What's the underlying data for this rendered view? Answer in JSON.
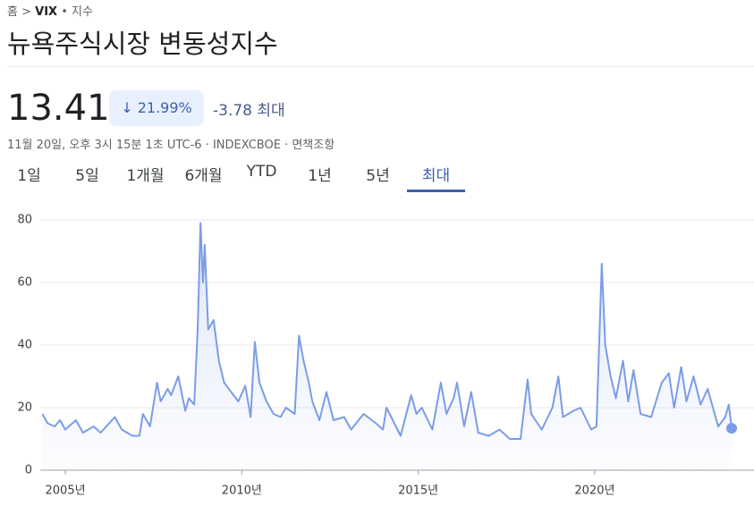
{
  "header": {
    "breadcrumb": [
      "홈",
      "VIX",
      "지수"
    ],
    "title": "뉴욕주식시장 변동성지수",
    "price": "13.41",
    "change_percent": "21.99%",
    "change": "-3.78",
    "period_label": "최대",
    "timestamp": "11월 20일, 오후 3시 15분 1초 UTC-6",
    "exchange": "INDEXCBOE",
    "disclaimer": "면책조항"
  },
  "tabs": [
    "1일",
    "5일",
    "1개월",
    "6개월",
    "YTD",
    "1년",
    "5년",
    "최대"
  ],
  "chart_data": {
    "type": "line",
    "x": [
      2004.35,
      2004.5,
      2004.7,
      2004.85,
      2005.0,
      2005.3,
      2005.5,
      2005.8,
      2006.0,
      2006.4,
      2006.6,
      2006.9,
      2007.1,
      2007.2,
      2007.4,
      2007.6,
      2007.7,
      2007.9,
      2008.0,
      2008.2,
      2008.4,
      2008.5,
      2008.65,
      2008.75,
      2008.83,
      2008.9,
      2008.95,
      2009.05,
      2009.2,
      2009.35,
      2009.5,
      2009.7,
      2009.9,
      2010.1,
      2010.25,
      2010.37,
      2010.5,
      2010.7,
      2010.9,
      2011.1,
      2011.25,
      2011.5,
      2011.62,
      2011.75,
      2011.9,
      2012.0,
      2012.2,
      2012.4,
      2012.6,
      2012.9,
      2013.1,
      2013.45,
      2013.8,
      2014.0,
      2014.1,
      2014.5,
      2014.8,
      2014.95,
      2015.1,
      2015.4,
      2015.64,
      2015.8,
      2016.0,
      2016.1,
      2016.3,
      2016.5,
      2016.7,
      2017.0,
      2017.3,
      2017.6,
      2017.9,
      2018.1,
      2018.2,
      2018.5,
      2018.8,
      2018.97,
      2019.1,
      2019.4,
      2019.6,
      2019.9,
      2020.05,
      2020.2,
      2020.3,
      2020.45,
      2020.6,
      2020.8,
      2020.95,
      2021.1,
      2021.3,
      2021.6,
      2021.9,
      2022.1,
      2022.25,
      2022.45,
      2022.6,
      2022.8,
      2023.0,
      2023.2,
      2023.5,
      2023.7,
      2023.8,
      2023.88
    ],
    "series": [
      {
        "name": "VIX",
        "color": "#7b9ce6",
        "values": [
          18,
          15,
          14,
          16,
          13,
          16,
          12,
          14,
          12,
          17,
          13,
          11,
          11,
          18,
          14,
          28,
          22,
          26,
          24,
          30,
          19,
          23,
          21,
          45,
          79,
          60,
          72,
          45,
          48,
          35,
          28,
          25,
          22,
          27,
          17,
          41,
          28,
          22,
          18,
          17,
          20,
          18,
          43,
          35,
          28,
          22,
          16,
          25,
          16,
          17,
          13,
          18,
          15,
          13,
          20,
          11,
          24,
          18,
          20,
          13,
          28,
          18,
          23,
          28,
          14,
          25,
          12,
          11,
          13,
          10,
          10,
          29,
          18,
          13,
          20,
          30,
          17,
          19,
          20,
          13,
          14,
          66,
          40,
          30,
          23,
          35,
          22,
          32,
          18,
          17,
          28,
          31,
          20,
          33,
          22,
          30,
          21,
          26,
          14,
          17,
          21,
          13.41
        ]
      }
    ],
    "xlim": [
      2004.34,
      2023.88
    ],
    "ylim": [
      0,
      80
    ],
    "yticks": [
      0,
      20,
      40,
      60,
      80
    ],
    "xticks": [
      {
        "value": 2005,
        "label": "2005년"
      },
      {
        "value": 2010,
        "label": "2010년"
      },
      {
        "value": 2015,
        "label": "2015년"
      },
      {
        "value": 2020,
        "label": "2020년"
      }
    ],
    "grid": true
  }
}
